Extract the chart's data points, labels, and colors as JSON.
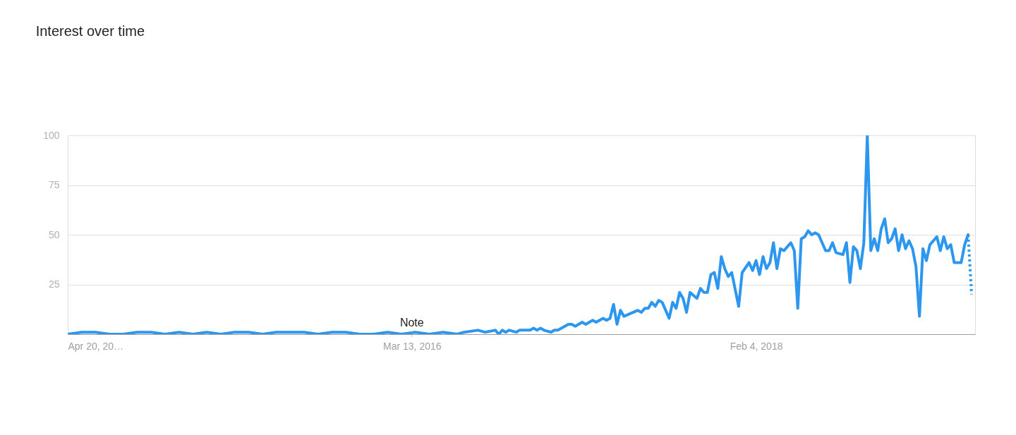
{
  "chart_data": {
    "type": "line",
    "title": "Interest over time",
    "xlim": [
      "2014-04-20",
      "2019-04-21"
    ],
    "ylim": [
      0,
      100
    ],
    "yticks": [
      25,
      50,
      75,
      100
    ],
    "xticks": [
      {
        "value": "2014-04-20",
        "label": "Apr 20, 20…"
      },
      {
        "value": "2016-03-13",
        "label": "Mar 13, 2016"
      },
      {
        "value": "2018-02-04",
        "label": "Feb 4, 2018"
      }
    ],
    "grid": "y",
    "marker": "none",
    "line_style": "solid",
    "annotations": [
      {
        "text": "Note",
        "x": "2016-03-13",
        "y": 0
      }
    ],
    "series": [
      {
        "color": "#2d96ef",
        "x": [
          "2014-04-20",
          "2014-05-18",
          "2014-06-15",
          "2014-07-13",
          "2014-08-10",
          "2014-09-07",
          "2014-10-05",
          "2014-11-02",
          "2014-11-30",
          "2014-12-28",
          "2015-01-25",
          "2015-02-22",
          "2015-03-22",
          "2015-04-19",
          "2015-05-17",
          "2015-06-14",
          "2015-07-12",
          "2015-08-09",
          "2015-09-06",
          "2015-10-04",
          "2015-11-01",
          "2015-11-29",
          "2015-12-27",
          "2016-01-24",
          "2016-02-21",
          "2016-03-20",
          "2016-04-17",
          "2016-05-15",
          "2016-06-12",
          "2016-06-26",
          "2016-07-24",
          "2016-08-07",
          "2016-08-28",
          "2016-09-04",
          "2016-09-11",
          "2016-09-18",
          "2016-09-25",
          "2016-10-09",
          "2016-10-16",
          "2016-11-06",
          "2016-11-13",
          "2016-11-20",
          "2016-11-27",
          "2016-12-04",
          "2016-12-18",
          "2016-12-25",
          "2017-01-01",
          "2017-01-15",
          "2017-01-22",
          "2017-01-29",
          "2017-02-05",
          "2017-02-19",
          "2017-02-26",
          "2017-03-12",
          "2017-03-19",
          "2017-04-02",
          "2017-04-09",
          "2017-04-16",
          "2017-04-23",
          "2017-04-30",
          "2017-05-07",
          "2017-05-14",
          "2017-06-11",
          "2017-06-18",
          "2017-06-25",
          "2017-07-02",
          "2017-07-09",
          "2017-07-16",
          "2017-07-23",
          "2017-07-30",
          "2017-08-13",
          "2017-08-20",
          "2017-08-27",
          "2017-09-03",
          "2017-09-10",
          "2017-09-17",
          "2017-09-24",
          "2017-10-08",
          "2017-10-15",
          "2017-10-22",
          "2017-10-29",
          "2017-11-05",
          "2017-11-12",
          "2017-11-19",
          "2017-11-26",
          "2017-12-03",
          "2017-12-10",
          "2017-12-17",
          "2017-12-31",
          "2018-01-07",
          "2018-01-21",
          "2018-01-28",
          "2018-02-04",
          "2018-02-11",
          "2018-02-18",
          "2018-02-25",
          "2018-03-04",
          "2018-03-11",
          "2018-03-18",
          "2018-03-25",
          "2018-04-01",
          "2018-04-15",
          "2018-04-22",
          "2018-04-29",
          "2018-05-06",
          "2018-05-13",
          "2018-05-20",
          "2018-05-27",
          "2018-06-03",
          "2018-06-10",
          "2018-06-24",
          "2018-07-01",
          "2018-07-08",
          "2018-07-15",
          "2018-07-29",
          "2018-08-05",
          "2018-08-12",
          "2018-08-19",
          "2018-08-26",
          "2018-09-02",
          "2018-09-09",
          "2018-09-16",
          "2018-09-23",
          "2018-09-30",
          "2018-10-07",
          "2018-10-14",
          "2018-10-21",
          "2018-10-28",
          "2018-11-04",
          "2018-11-11",
          "2018-11-18",
          "2018-11-25",
          "2018-12-02",
          "2018-12-09",
          "2018-12-16",
          "2018-12-23",
          "2018-12-30",
          "2019-01-06",
          "2019-01-13",
          "2019-01-20",
          "2019-01-27",
          "2019-02-03",
          "2019-02-10",
          "2019-02-17",
          "2019-02-24",
          "2019-03-03",
          "2019-03-10",
          "2019-03-24",
          "2019-03-31",
          "2019-04-07"
        ],
        "values": [
          0,
          1,
          1,
          0,
          0,
          1,
          1,
          0,
          1,
          0,
          1,
          0,
          1,
          1,
          0,
          1,
          1,
          1,
          0,
          1,
          1,
          0,
          0,
          1,
          0,
          1,
          0,
          1,
          0,
          1,
          2,
          1,
          2,
          0,
          2,
          1,
          2,
          1,
          2,
          2,
          3,
          2,
          3,
          2,
          1,
          2,
          2,
          4,
          5,
          5,
          4,
          6,
          5,
          7,
          6,
          8,
          7,
          8,
          15,
          5,
          12,
          9,
          12,
          11,
          13,
          13,
          16,
          14,
          17,
          16,
          8,
          16,
          13,
          21,
          18,
          11,
          21,
          18,
          23,
          21,
          21,
          30,
          31,
          23,
          39,
          33,
          29,
          31,
          14,
          31,
          36,
          32,
          37,
          30,
          39,
          33,
          36,
          46,
          33,
          43,
          42,
          46,
          42,
          13,
          48,
          49,
          52,
          50,
          51,
          50,
          42,
          42,
          46,
          41,
          40,
          46,
          26,
          44,
          42,
          33,
          46,
          100,
          42,
          48,
          42,
          53,
          58,
          46,
          48,
          53,
          42,
          50,
          43,
          47,
          43,
          34,
          9,
          43,
          37,
          45,
          47,
          49,
          42,
          49,
          43,
          45,
          36,
          36,
          45,
          50
        ]
      },
      {
        "color": "#2d96ef",
        "line_style": "dotted",
        "x": [
          "2019-04-07",
          "2019-04-14"
        ],
        "values": [
          50,
          20
        ]
      }
    ]
  }
}
